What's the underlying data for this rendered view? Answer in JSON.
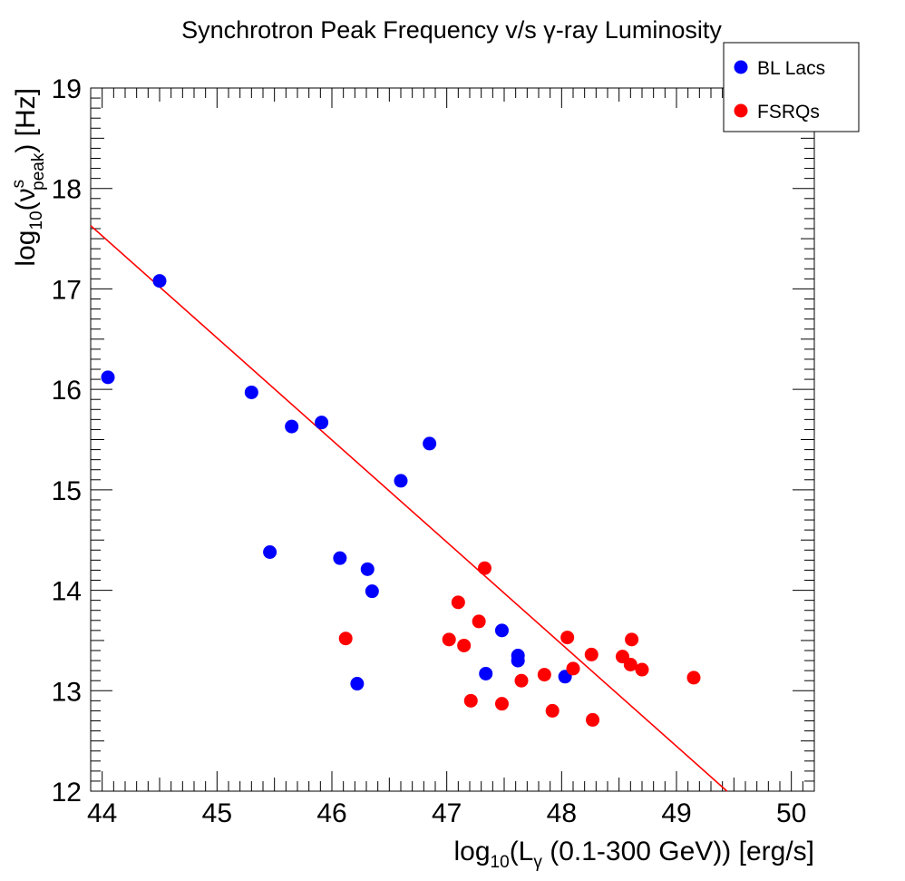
{
  "chart_data": {
    "type": "scatter",
    "title": "Synchrotron Peak Frequency v/s γ-ray Luminosity",
    "xlabel": {
      "prefix": "log",
      "prefix_sub": "10",
      "open": "(L",
      "var_sub": "γ",
      "rest": " (0.1-300 GeV)) [erg/s]"
    },
    "ylabel": {
      "prefix": "log",
      "prefix_sub": "10",
      "open": "(ν",
      "var_sup": "s",
      "var_sub": "peak",
      "rest": ") [Hz]"
    },
    "xlim": [
      43.9,
      50.2
    ],
    "ylim": [
      12,
      19
    ],
    "xticks": [
      44,
      45,
      46,
      47,
      48,
      49,
      50
    ],
    "yticks": [
      12,
      13,
      14,
      15,
      16,
      17,
      18,
      19
    ],
    "grid": false,
    "legend_position": "top-right",
    "series": [
      {
        "name": "BL Lacs",
        "color": "#0000ff",
        "points": [
          {
            "x": 44.05,
            "y": 16.12
          },
          {
            "x": 44.5,
            "y": 17.08
          },
          {
            "x": 45.3,
            "y": 15.97
          },
          {
            "x": 45.46,
            "y": 14.38
          },
          {
            "x": 45.65,
            "y": 15.63
          },
          {
            "x": 45.91,
            "y": 15.67
          },
          {
            "x": 46.07,
            "y": 14.32
          },
          {
            "x": 46.22,
            "y": 13.07
          },
          {
            "x": 46.31,
            "y": 14.21
          },
          {
            "x": 46.35,
            "y": 13.99
          },
          {
            "x": 46.6,
            "y": 15.09
          },
          {
            "x": 46.85,
            "y": 15.46
          },
          {
            "x": 47.34,
            "y": 13.17
          },
          {
            "x": 47.48,
            "y": 13.6
          },
          {
            "x": 47.62,
            "y": 13.35
          },
          {
            "x": 47.62,
            "y": 13.3
          },
          {
            "x": 48.03,
            "y": 13.14
          }
        ]
      },
      {
        "name": "FSRQs",
        "color": "#ff0000",
        "points": [
          {
            "x": 46.12,
            "y": 13.52
          },
          {
            "x": 47.02,
            "y": 13.51
          },
          {
            "x": 47.1,
            "y": 13.88
          },
          {
            "x": 47.15,
            "y": 13.45
          },
          {
            "x": 47.21,
            "y": 12.9
          },
          {
            "x": 47.28,
            "y": 13.69
          },
          {
            "x": 47.33,
            "y": 14.22
          },
          {
            "x": 47.48,
            "y": 12.87
          },
          {
            "x": 47.65,
            "y": 13.1
          },
          {
            "x": 47.85,
            "y": 13.16
          },
          {
            "x": 47.92,
            "y": 12.8
          },
          {
            "x": 48.05,
            "y": 13.53
          },
          {
            "x": 48.1,
            "y": 13.22
          },
          {
            "x": 48.26,
            "y": 13.36
          },
          {
            "x": 48.27,
            "y": 12.71
          },
          {
            "x": 48.53,
            "y": 13.34
          },
          {
            "x": 48.6,
            "y": 13.26
          },
          {
            "x": 48.61,
            "y": 13.51
          },
          {
            "x": 48.7,
            "y": 13.21
          },
          {
            "x": 49.15,
            "y": 13.13
          }
        ]
      }
    ],
    "fit_line": {
      "color": "#ff0000",
      "points": [
        {
          "x": 43.9,
          "y": 17.63
        },
        {
          "x": 49.44,
          "y": 12.0
        }
      ]
    }
  }
}
